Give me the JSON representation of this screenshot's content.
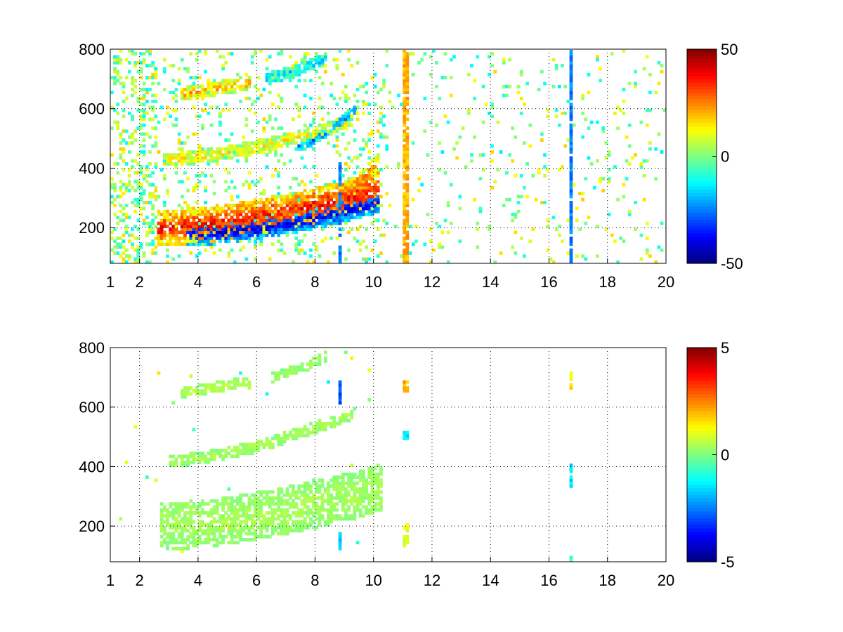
{
  "chart_data": [
    {
      "type": "heatmap",
      "title": "",
      "xlabel": "",
      "ylabel": "",
      "xlim": [
        1,
        20
      ],
      "ylim": [
        80,
        800
      ],
      "x_ticks": [
        1,
        2,
        4,
        6,
        8,
        10,
        12,
        14,
        16,
        18,
        20
      ],
      "y_ticks": [
        200,
        400,
        600,
        800
      ],
      "grid": true,
      "grid_style": "dotted",
      "colormap": "jet",
      "clim": [
        -50,
        50
      ],
      "colorbar_ticks": [
        50,
        0,
        -50
      ],
      "background_noise": "strong",
      "bands": [
        {
          "x_start": 2.6,
          "x_end": 10.2,
          "y_start": 200,
          "y_end": 330,
          "curvature": 1.6,
          "thickness": 120,
          "value": 35
        },
        {
          "x_start": 3.6,
          "x_end": 10.2,
          "y_start": 175,
          "y_end": 285,
          "curvature": 1.6,
          "thickness": 70,
          "value": -40
        },
        {
          "x_start": 2.8,
          "x_end": 9.3,
          "y_start": 430,
          "y_end": 560,
          "curvature": 1.6,
          "thickness": 45,
          "value": 12
        },
        {
          "x_start": 7.3,
          "x_end": 9.4,
          "y_start": 470,
          "y_end": 600,
          "curvature": 1.4,
          "thickness": 30,
          "value": -25
        },
        {
          "x_start": 3.4,
          "x_end": 5.8,
          "y_start": 650,
          "y_end": 690,
          "curvature": 1.2,
          "thickness": 45,
          "value": 20
        },
        {
          "x_start": 6.3,
          "x_end": 8.4,
          "y_start": 700,
          "y_end": 770,
          "curvature": 1.3,
          "thickness": 40,
          "value": -15
        },
        {
          "x_start": 8.7,
          "x_end": 10.2,
          "y_start": 300,
          "y_end": 420,
          "curvature": 1.2,
          "thickness": 60,
          "value": 25
        }
      ],
      "vertical_lines": [
        {
          "x": 11.1,
          "y_min": 80,
          "y_max": 800,
          "value": 20
        },
        {
          "x": 16.75,
          "y_min": 80,
          "y_max": 800,
          "value": -25
        },
        {
          "x": 8.85,
          "y_min": 80,
          "y_max": 420,
          "value": -25
        }
      ]
    },
    {
      "type": "heatmap",
      "title": "",
      "xlabel": "",
      "ylabel": "",
      "xlim": [
        1,
        20
      ],
      "ylim": [
        80,
        800
      ],
      "x_ticks": [
        1,
        2,
        4,
        6,
        8,
        10,
        12,
        14,
        16,
        18,
        20
      ],
      "y_ticks": [
        200,
        400,
        600,
        800
      ],
      "grid": true,
      "grid_style": "dotted",
      "colormap": "jet",
      "clim": [
        -5,
        5
      ],
      "colorbar_ticks": [
        5,
        0,
        -5
      ],
      "background_noise": "sparse",
      "bands": [
        {
          "x_start": 2.7,
          "x_end": 10.3,
          "y_start": 200,
          "y_end": 330,
          "curvature": 1.6,
          "thickness": 160,
          "value": 0.4
        },
        {
          "x_start": 3.0,
          "x_end": 9.3,
          "y_start": 420,
          "y_end": 580,
          "curvature": 1.6,
          "thickness": 40,
          "value": 0.4
        },
        {
          "x_start": 3.4,
          "x_end": 5.8,
          "y_start": 650,
          "y_end": 690,
          "curvature": 1.2,
          "thickness": 35,
          "value": 0.6
        },
        {
          "x_start": 6.5,
          "x_end": 8.4,
          "y_start": 700,
          "y_end": 770,
          "curvature": 1.2,
          "thickness": 35,
          "value": 0.3
        }
      ],
      "vertical_lines": [
        {
          "x": 8.85,
          "y_min": 610,
          "y_max": 690,
          "value": -3
        },
        {
          "x": 8.85,
          "y_min": 120,
          "y_max": 180,
          "value": -2
        },
        {
          "x": 11.1,
          "y_min": 650,
          "y_max": 690,
          "value": 2
        },
        {
          "x": 11.1,
          "y_min": 130,
          "y_max": 210,
          "value": 1
        },
        {
          "x": 11.1,
          "y_min": 490,
          "y_max": 515,
          "value": -1.5
        },
        {
          "x": 16.75,
          "y_min": 660,
          "y_max": 720,
          "value": 1.5
        },
        {
          "x": 16.75,
          "y_min": 330,
          "y_max": 410,
          "value": -1.5
        },
        {
          "x": 16.75,
          "y_min": 85,
          "y_max": 100,
          "value": -0.5
        }
      ]
    }
  ]
}
